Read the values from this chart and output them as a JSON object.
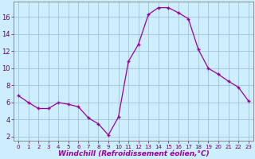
{
  "x": [
    0,
    1,
    2,
    3,
    4,
    5,
    6,
    7,
    8,
    9,
    10,
    11,
    12,
    13,
    14,
    15,
    16,
    17,
    18,
    19,
    20,
    21,
    22,
    23
  ],
  "y": [
    6.8,
    6.0,
    5.3,
    5.3,
    6.0,
    5.8,
    5.5,
    4.2,
    3.5,
    2.2,
    4.3,
    10.8,
    12.8,
    16.3,
    17.1,
    17.1,
    16.5,
    15.8,
    12.2,
    10.0,
    9.3,
    8.5,
    7.8,
    6.2
  ],
  "line_color": "#990099",
  "marker": "+",
  "marker_size": 3.5,
  "marker_linewidth": 1.0,
  "background_color": "#cceeff",
  "grid_color": "#99bbcc",
  "xlabel": "Windchill (Refroidissement éolien,°C)",
  "xlabel_fontsize": 6.5,
  "ylabel_ticks": [
    2,
    4,
    6,
    8,
    10,
    12,
    14,
    16
  ],
  "ylabel_fontsize": 6,
  "xtick_fontsize": 5,
  "xlim": [
    -0.5,
    23.5
  ],
  "ylim": [
    1.5,
    17.8
  ]
}
